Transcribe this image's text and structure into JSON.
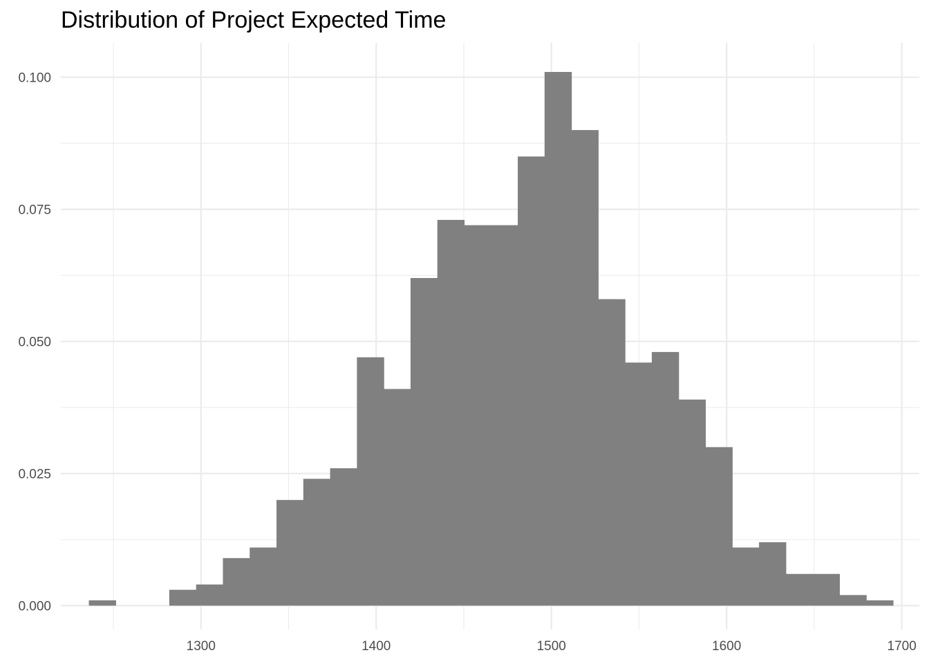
{
  "chart_data": {
    "type": "bar",
    "title": "Distribution of Project Expected Time",
    "xlabel": "",
    "ylabel": "",
    "xlim": [
      1220,
      1710
    ],
    "ylim": [
      -0.0045,
      0.1065
    ],
    "x_ticks": [
      1300,
      1400,
      1500,
      1600,
      1700
    ],
    "x_tick_labels": [
      "1300",
      "1400",
      "1500",
      "1600",
      "1700"
    ],
    "y_ticks": [
      0.0,
      0.025,
      0.05,
      0.075,
      0.1
    ],
    "y_tick_labels": [
      "0.000",
      "0.025",
      "0.050",
      "0.075",
      "0.100"
    ],
    "grid": true,
    "legend": false,
    "bar_color": "#808080",
    "grid_color": "#ebebeb",
    "bin_width": 15.3,
    "bins": [
      {
        "start": 1236.0,
        "end": 1251.3,
        "value": 0.001
      },
      {
        "start": 1251.3,
        "end": 1266.6,
        "value": 0.0
      },
      {
        "start": 1266.6,
        "end": 1281.9,
        "value": 0.0
      },
      {
        "start": 1281.9,
        "end": 1297.2,
        "value": 0.003
      },
      {
        "start": 1297.2,
        "end": 1312.5,
        "value": 0.004
      },
      {
        "start": 1312.5,
        "end": 1327.8,
        "value": 0.009
      },
      {
        "start": 1327.8,
        "end": 1343.1,
        "value": 0.011
      },
      {
        "start": 1343.1,
        "end": 1358.4,
        "value": 0.02
      },
      {
        "start": 1358.4,
        "end": 1373.7,
        "value": 0.024
      },
      {
        "start": 1373.7,
        "end": 1389.0,
        "value": 0.026
      },
      {
        "start": 1389.0,
        "end": 1404.3,
        "value": 0.047
      },
      {
        "start": 1404.3,
        "end": 1419.6,
        "value": 0.041
      },
      {
        "start": 1419.6,
        "end": 1434.9,
        "value": 0.062
      },
      {
        "start": 1434.9,
        "end": 1450.2,
        "value": 0.073
      },
      {
        "start": 1450.2,
        "end": 1465.5,
        "value": 0.072
      },
      {
        "start": 1465.5,
        "end": 1480.8,
        "value": 0.072
      },
      {
        "start": 1480.8,
        "end": 1496.1,
        "value": 0.085
      },
      {
        "start": 1496.1,
        "end": 1511.4,
        "value": 0.101
      },
      {
        "start": 1511.4,
        "end": 1526.7,
        "value": 0.09
      },
      {
        "start": 1526.7,
        "end": 1542.0,
        "value": 0.058
      },
      {
        "start": 1542.0,
        "end": 1557.3,
        "value": 0.046
      },
      {
        "start": 1557.3,
        "end": 1572.6,
        "value": 0.048
      },
      {
        "start": 1572.6,
        "end": 1587.9,
        "value": 0.039
      },
      {
        "start": 1587.9,
        "end": 1603.2,
        "value": 0.03
      },
      {
        "start": 1603.2,
        "end": 1618.5,
        "value": 0.011
      },
      {
        "start": 1618.5,
        "end": 1633.8,
        "value": 0.012
      },
      {
        "start": 1633.8,
        "end": 1649.1,
        "value": 0.006
      },
      {
        "start": 1649.1,
        "end": 1664.4,
        "value": 0.006
      },
      {
        "start": 1664.4,
        "end": 1679.7,
        "value": 0.002
      },
      {
        "start": 1679.7,
        "end": 1695.0,
        "value": 0.001
      }
    ]
  }
}
